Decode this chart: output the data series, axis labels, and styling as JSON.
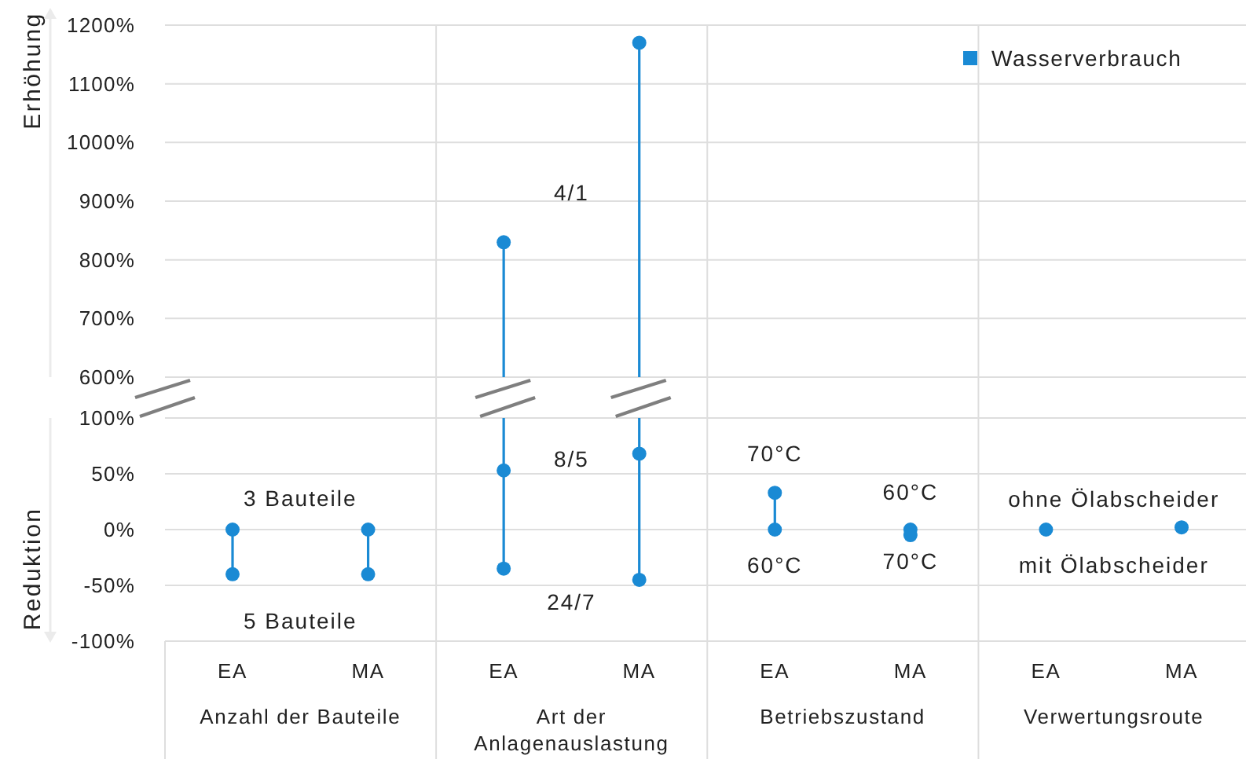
{
  "chart_data": [
    {
      "type": "scatter",
      "ylabel": "Erhöhung",
      "ylim": [
        600,
        1200
      ],
      "yticks": [
        {
          "value": 600,
          "label": "600%"
        },
        {
          "value": 700,
          "label": "700%"
        },
        {
          "value": 800,
          "label": "800%"
        },
        {
          "value": 900,
          "label": "900%"
        },
        {
          "value": 1000,
          "label": "1000%"
        },
        {
          "value": 1100,
          "label": "1100%"
        },
        {
          "value": 1200,
          "label": "1200%"
        }
      ],
      "tick_labels": "y",
      "grid": "y",
      "marker": "circle",
      "legend": "top right",
      "annotations": [
        "4/1"
      ],
      "series": [
        {
          "name": "Wasserverbrauch",
          "color": "#1a8ad4",
          "values": [
            null,
            null,
            830,
            1170,
            null,
            null,
            null,
            null
          ]
        }
      ]
    },
    {
      "type": "scatter",
      "ylabel": "Reduktion",
      "categories": [
        "EA",
        "MA",
        "EA",
        "MA",
        "EA",
        "MA",
        "EA",
        "MA"
      ],
      "ylim": [
        -100,
        100
      ],
      "yticks": [
        {
          "value": -100,
          "label": "-100%"
        },
        {
          "value": -50,
          "label": "-50%"
        },
        {
          "value": 0,
          "label": "0%"
        },
        {
          "value": 50,
          "label": "50%"
        },
        {
          "value": 100,
          "label": "100%"
        }
      ],
      "grid": "y",
      "marker": "circle",
      "annotations": [
        "3 Bauteile",
        "5 Bauteile",
        "8/5",
        "24/7",
        "70°C",
        "60°C",
        "60°C",
        "70°C",
        "ohne Ölabscheider",
        "mit Ölabscheider",
        "Anzahl der Bauteile",
        "Art der Anlagenauslastung",
        "Betriebszustand",
        "Verwertungsroute"
      ],
      "series": [
        {
          "color": "#1a8ad4",
          "values": [
            0,
            0,
            53,
            68,
            33,
            0,
            0,
            2
          ]
        },
        {
          "color": "#1a8ad4",
          "values": [
            -40,
            -40,
            -35,
            -45,
            0,
            -5,
            null,
            null
          ]
        }
      ]
    }
  ]
}
